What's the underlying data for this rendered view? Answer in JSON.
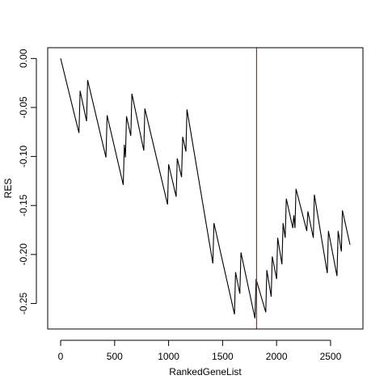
{
  "chart_data": {
    "type": "line",
    "title": "",
    "xlabel": "RankedGeneList",
    "ylabel": "RES",
    "xlim": [
      -120,
      2800
    ],
    "ylim": [
      -0.276,
      0.011
    ],
    "x_ticks": [
      0,
      500,
      1000,
      1500,
      2000,
      2500
    ],
    "x_tick_labels": [
      "0",
      "500",
      "1000",
      "1500",
      "2000",
      "2500"
    ],
    "y_ticks": [
      0.0,
      -0.05,
      -0.1,
      -0.15,
      -0.2,
      -0.25
    ],
    "y_tick_labels": [
      "0.00",
      "-0.05",
      "-0.10",
      "-0.15",
      "-0.20",
      "-0.25"
    ],
    "grid": false,
    "legend": "none",
    "vline": {
      "x": 1815,
      "color": "#b22222"
    },
    "series": [
      {
        "color": "#000000",
        "x": [
          0,
          170,
          180,
          240,
          250,
          420,
          430,
          580,
          590,
          600,
          610,
          650,
          660,
          770,
          780,
          990,
          1000,
          1070,
          1080,
          1120,
          1130,
          1160,
          1170,
          1410,
          1420,
          1610,
          1620,
          1660,
          1670,
          1800,
          1810,
          1900,
          1910,
          1950,
          1960,
          2000,
          2010,
          2050,
          2060,
          2080,
          2090,
          2150,
          2160,
          2170,
          2180,
          2280,
          2290,
          2340,
          2350,
          2470,
          2480,
          2560,
          2570,
          2600,
          2610,
          2680
        ],
        "y": [
          0.0,
          -0.076,
          -0.033,
          -0.064,
          -0.022,
          -0.101,
          -0.058,
          -0.129,
          -0.088,
          -0.101,
          -0.059,
          -0.079,
          -0.036,
          -0.094,
          -0.051,
          -0.149,
          -0.108,
          -0.141,
          -0.102,
          -0.121,
          -0.08,
          -0.095,
          -0.052,
          -0.209,
          -0.168,
          -0.261,
          -0.218,
          -0.24,
          -0.198,
          -0.265,
          -0.225,
          -0.259,
          -0.216,
          -0.243,
          -0.202,
          -0.225,
          -0.183,
          -0.21,
          -0.168,
          -0.183,
          -0.143,
          -0.173,
          -0.16,
          -0.173,
          -0.133,
          -0.176,
          -0.156,
          -0.183,
          -0.139,
          -0.219,
          -0.176,
          -0.222,
          -0.176,
          -0.197,
          -0.155,
          -0.19
        ]
      }
    ]
  }
}
